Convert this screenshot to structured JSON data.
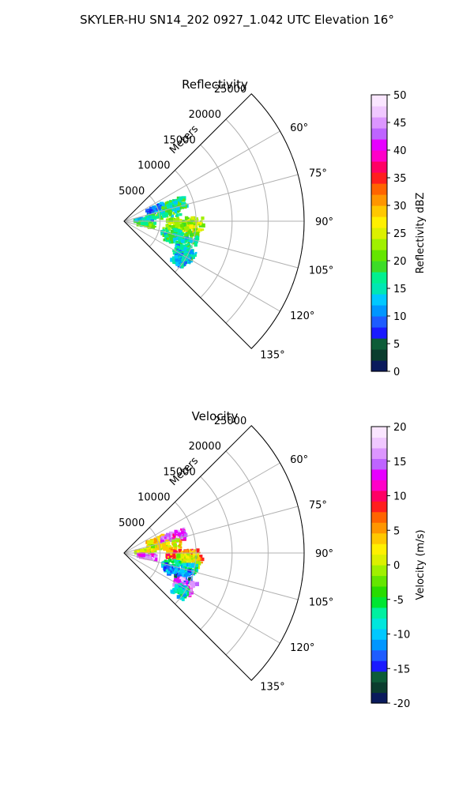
{
  "figure": {
    "suptitle": "SKYLER-HU  SN14_202  0927_1.042 UTC Elevation 16°"
  },
  "chart_data": [
    {
      "type": "polar-sector-field",
      "title": "Reflectivity",
      "radial_label": "Meters",
      "radial_ticks": [
        5000,
        10000,
        15000,
        20000,
        25000
      ],
      "r_max": 25000,
      "angular_ticks_deg": [
        60,
        75,
        90,
        105,
        120,
        135
      ],
      "angular_tick_labels": [
        "60°",
        "75°",
        "90°",
        "105°",
        "120°",
        "135°"
      ],
      "theta_range_deg": [
        45,
        135
      ],
      "colorbar": {
        "label": "Reflectivity dBZ",
        "min": 0,
        "max": 50,
        "ticks": [
          0,
          5,
          10,
          15,
          20,
          25,
          30,
          35,
          40,
          45,
          50
        ],
        "colors": [
          "#0a1a5c",
          "#0b3d2e",
          "#0d5c38",
          "#1a1aff",
          "#1e5cff",
          "#0096ff",
          "#00c8ff",
          "#00e6b4",
          "#00f090",
          "#3cdc28",
          "#64e600",
          "#a0f000",
          "#dcf000",
          "#fff000",
          "#ffc800",
          "#ff9600",
          "#ff6400",
          "#ff1e1e",
          "#ff0064",
          "#ff00c8",
          "#e600ff",
          "#be64ff",
          "#dc96ff",
          "#f0c8ff",
          "#fae6ff"
        ]
      },
      "echo_regions": [
        {
          "az": 70,
          "range": [
            3500,
            6000
          ],
          "value": 12
        },
        {
          "az": 72,
          "range": [
            5500,
            9000
          ],
          "value": 17
        },
        {
          "az": 80,
          "range": [
            3000,
            8000
          ],
          "value": 18
        },
        {
          "az": 87,
          "range": [
            1500,
            4000
          ],
          "value": 14
        },
        {
          "az": 92,
          "range": [
            6000,
            11000
          ],
          "value": 22
        },
        {
          "az": 96,
          "range": [
            7500,
            10500
          ],
          "value": 24
        },
        {
          "az": 98,
          "range": [
            2000,
            4500
          ],
          "value": 20
        },
        {
          "az": 104,
          "range": [
            5500,
            10500
          ],
          "value": 18
        },
        {
          "az": 110,
          "range": [
            6000,
            10000
          ],
          "value": 16
        },
        {
          "az": 118,
          "range": [
            8000,
            11000
          ],
          "value": 14
        },
        {
          "az": 124,
          "range": [
            8500,
            10500
          ],
          "value": 13
        }
      ]
    },
    {
      "type": "polar-sector-field",
      "title": "Velocity",
      "radial_label": "Meters",
      "radial_ticks": [
        5000,
        10000,
        15000,
        20000,
        25000
      ],
      "r_max": 25000,
      "angular_ticks_deg": [
        60,
        75,
        90,
        105,
        120,
        135
      ],
      "angular_tick_labels": [
        "60°",
        "75°",
        "90°",
        "105°",
        "120°",
        "135°"
      ],
      "theta_range_deg": [
        45,
        135
      ],
      "colorbar": {
        "label": "Velocity (m/s)",
        "min": -20,
        "max": 20,
        "ticks": [
          -20,
          -15,
          -10,
          -5,
          0,
          5,
          10,
          15,
          20
        ],
        "colors": [
          "#0a1a5c",
          "#0b3d2e",
          "#0d5c38",
          "#1a1aff",
          "#1e5cff",
          "#0096ff",
          "#00c8ff",
          "#00e6dc",
          "#00f0a0",
          "#00e632",
          "#28dc00",
          "#64e600",
          "#a0f000",
          "#dcf000",
          "#fff000",
          "#ffc800",
          "#ff9600",
          "#ff6400",
          "#ff1e1e",
          "#ff0064",
          "#ff00c8",
          "#e600ff",
          "#be64ff",
          "#dc96ff",
          "#f0c8ff",
          "#fae6ff"
        ]
      },
      "echo_regions": [
        {
          "az": 70,
          "range": [
            3500,
            6000
          ],
          "value": 3
        },
        {
          "az": 72,
          "range": [
            5500,
            9000
          ],
          "value": 14
        },
        {
          "az": 80,
          "range": [
            3000,
            8000
          ],
          "value": 2
        },
        {
          "az": 87,
          "range": [
            1500,
            4000
          ],
          "value": 1
        },
        {
          "az": 92,
          "range": [
            6000,
            11000
          ],
          "value": 6
        },
        {
          "az": 96,
          "range": [
            7500,
            10500
          ],
          "value": 1
        },
        {
          "az": 98,
          "range": [
            2000,
            4500
          ],
          "value": 14
        },
        {
          "az": 104,
          "range": [
            5500,
            10500
          ],
          "value": -8
        },
        {
          "az": 110,
          "range": [
            6000,
            10000
          ],
          "value": -12
        },
        {
          "az": 118,
          "range": [
            8000,
            11000
          ],
          "value": 15
        },
        {
          "az": 124,
          "range": [
            8500,
            10500
          ],
          "value": -8
        }
      ]
    }
  ]
}
